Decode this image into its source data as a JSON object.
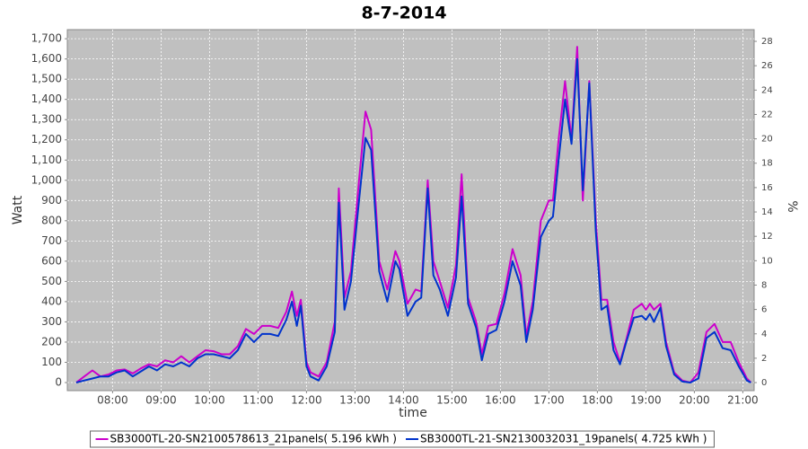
{
  "chart_data": {
    "type": "line",
    "title": "8-7-2014",
    "x_label": "time",
    "y_label": "Watt",
    "y2_label": "%",
    "x": [
      "07:15",
      "07:25",
      "07:35",
      "07:45",
      "07:55",
      "08:05",
      "08:15",
      "08:25",
      "08:35",
      "08:45",
      "08:55",
      "09:05",
      "09:15",
      "09:25",
      "09:35",
      "09:45",
      "09:55",
      "10:05",
      "10:15",
      "10:25",
      "10:35",
      "10:45",
      "10:55",
      "11:05",
      "11:15",
      "11:25",
      "11:35",
      "11:42",
      "11:48",
      "11:53",
      "12:00",
      "12:05",
      "12:15",
      "12:25",
      "12:35",
      "12:40",
      "12:47",
      "12:55",
      "13:05",
      "13:13",
      "13:20",
      "13:30",
      "13:40",
      "13:50",
      "13:55",
      "14:05",
      "14:15",
      "14:22",
      "14:30",
      "14:37",
      "14:45",
      "14:55",
      "15:05",
      "15:12",
      "15:20",
      "15:30",
      "15:37",
      "15:45",
      "15:55",
      "16:05",
      "16:15",
      "16:25",
      "16:32",
      "16:40",
      "16:50",
      "17:00",
      "17:05",
      "17:12",
      "17:20",
      "17:28",
      "17:35",
      "17:42",
      "17:50",
      "17:58",
      "18:05",
      "18:12",
      "18:20",
      "18:28",
      "18:35",
      "18:45",
      "18:55",
      "19:00",
      "19:05",
      "19:10",
      "19:18",
      "19:25",
      "19:35",
      "19:45",
      "19:55",
      "20:05",
      "20:15",
      "20:25",
      "20:35",
      "20:45",
      "20:55",
      "21:05",
      "21:10"
    ],
    "series": [
      {
        "name": "SB3000TL-20-SN2100578613_21panels( 5.196 kWh )",
        "color": "#cc00cc",
        "values": [
          0,
          30,
          60,
          30,
          40,
          60,
          65,
          45,
          70,
          90,
          80,
          110,
          100,
          130,
          100,
          130,
          160,
          155,
          140,
          140,
          180,
          265,
          240,
          280,
          280,
          270,
          350,
          450,
          330,
          410,
          100,
          50,
          30,
          100,
          300,
          960,
          420,
          550,
          1000,
          1340,
          1250,
          600,
          460,
          650,
          600,
          390,
          460,
          450,
          1000,
          600,
          500,
          370,
          580,
          1030,
          420,
          300,
          140,
          280,
          290,
          440,
          660,
          530,
          230,
          400,
          800,
          900,
          900,
          1200,
          1490,
          1200,
          1660,
          900,
          1490,
          800,
          410,
          410,
          200,
          100,
          200,
          360,
          390,
          360,
          390,
          360,
          390,
          200,
          50,
          10,
          0,
          50,
          250,
          290,
          200,
          200,
          100,
          20,
          0
        ]
      },
      {
        "name": "SB3000TL-21-SN2130032031_19panels( 4.725 kWh )",
        "color": "#0033cc",
        "values": [
          0,
          10,
          20,
          30,
          30,
          50,
          60,
          30,
          55,
          80,
          60,
          90,
          80,
          100,
          80,
          120,
          140,
          140,
          130,
          120,
          160,
          240,
          200,
          240,
          240,
          230,
          310,
          400,
          280,
          380,
          80,
          30,
          10,
          80,
          250,
          890,
          360,
          500,
          900,
          1210,
          1150,
          550,
          400,
          600,
          560,
          330,
          400,
          420,
          960,
          530,
          460,
          330,
          520,
          920,
          390,
          270,
          110,
          240,
          260,
          400,
          600,
          480,
          200,
          360,
          720,
          800,
          820,
          1100,
          1400,
          1180,
          1600,
          950,
          1480,
          750,
          360,
          380,
          160,
          90,
          190,
          320,
          330,
          310,
          340,
          300,
          370,
          180,
          40,
          5,
          0,
          20,
          220,
          250,
          170,
          160,
          80,
          10,
          0
        ]
      }
    ],
    "xlim": [
      "07:04",
      "21:14"
    ],
    "xticks": [
      "08:00",
      "09:00",
      "10:00",
      "11:00",
      "12:00",
      "13:00",
      "14:00",
      "15:00",
      "16:00",
      "17:00",
      "18:00",
      "19:00",
      "20:00",
      "21:00"
    ],
    "ylim": [
      -40,
      1745
    ],
    "yticks": [
      0,
      100,
      200,
      300,
      400,
      500,
      600,
      700,
      800,
      900,
      {
        "value": 1000,
        "label": "1,000"
      },
      {
        "value": 1100,
        "label": "1,100"
      },
      {
        "value": 1200,
        "label": "1,200"
      },
      {
        "value": 1300,
        "label": "1,300"
      },
      {
        "value": 1400,
        "label": "1,400"
      },
      {
        "value": 1500,
        "label": "1,500"
      },
      {
        "value": 1600,
        "label": "1,600"
      },
      {
        "value": 1700,
        "label": "1,700"
      }
    ],
    "y2lim": [
      -0.66,
      28.96
    ],
    "y2ticks": [
      0,
      2,
      4,
      6,
      8,
      10,
      12,
      14,
      16,
      18,
      20,
      22,
      24,
      26,
      28
    ],
    "grid": true,
    "legend": "bottom"
  }
}
